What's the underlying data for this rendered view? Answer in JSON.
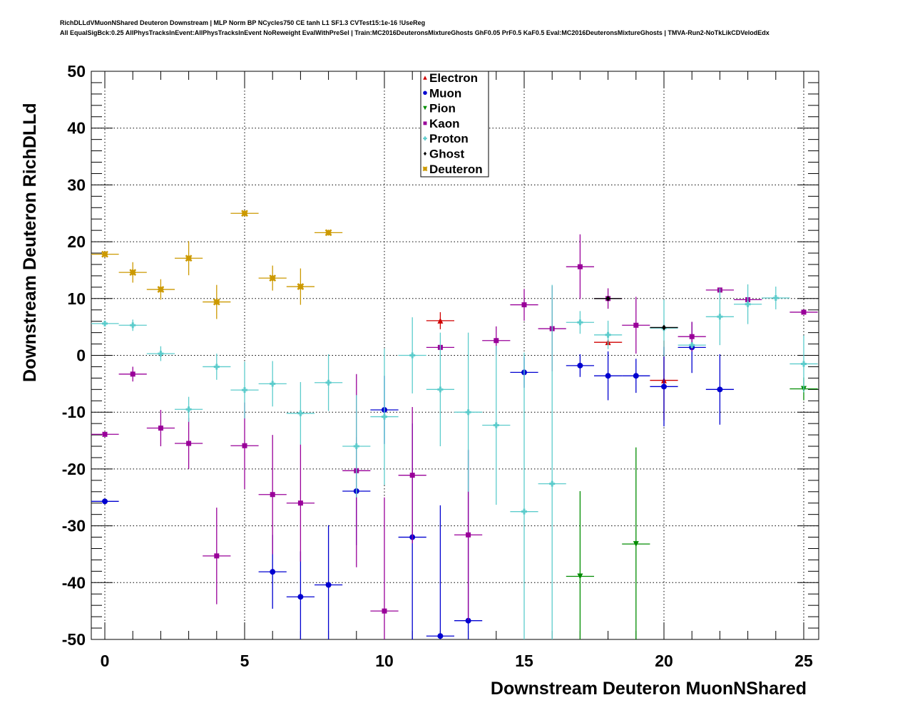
{
  "chart_data": {
    "type": "scatter",
    "title": "RichDLLdVMuonNShared Deuteron Downstream | MLP Norm BP NCycles750 CE tanh L1 SF1.3 CVTest15:1e-16 !UseReg",
    "subtitle": "All EqualSigBck:0.25 AllPhysTracksInEvent:AllPhysTracksInEvent NoReweight EvalWithPreSel | Train:MC2016DeuteronsMixtureGhosts GhF0.05 PrF0.5 KaF0.5 Eval:MC2016DeuteronsMixtureGhosts | TMVA-Run2-NoTkLikCDVelodEdx",
    "xlabel": "Downstream Deuteron MuonNShared",
    "ylabel": "Downstream Deuteron RichDLLd",
    "xlim": [
      -0.5,
      25.5
    ],
    "ylim": [
      -50,
      50
    ],
    "xticks": [
      0,
      5,
      10,
      15,
      20,
      25
    ],
    "yticks": [
      -50,
      -40,
      -30,
      -20,
      -10,
      0,
      10,
      20,
      30,
      40,
      50
    ],
    "grid": true,
    "legend_position": "top-center",
    "series": [
      {
        "name": "Electron",
        "color": "#d00000",
        "marker": "triangle-up",
        "points": [
          [
            12,
            6.1,
            1.5
          ],
          [
            18,
            2.3,
            0.5
          ],
          [
            20,
            -4.4,
            7
          ]
        ]
      },
      {
        "name": "Muon",
        "color": "#0000d0",
        "marker": "circle",
        "points": [
          [
            0,
            -25.7,
            0.3
          ],
          [
            6,
            -38.1,
            6.5
          ],
          [
            7,
            -42.5,
            8
          ],
          [
            8,
            -40.4,
            10.5
          ],
          [
            9,
            -23.9,
            9.5
          ],
          [
            10,
            -9.6,
            6
          ],
          [
            11,
            -32,
            20
          ],
          [
            12,
            -49.4,
            23
          ],
          [
            13,
            -46.7,
            30
          ],
          [
            15,
            -3,
            2.7
          ],
          [
            17,
            -1.8,
            2
          ],
          [
            18,
            -3.6,
            4.3
          ],
          [
            19,
            -3.6,
            3
          ],
          [
            20,
            -5.5,
            7
          ],
          [
            21,
            1.4,
            4.5
          ],
          [
            22,
            -6,
            6.2
          ]
        ]
      },
      {
        "name": "Pion",
        "color": "#008c00",
        "marker": "triangle-down",
        "points": [
          [
            17,
            -38.9,
            15
          ],
          [
            19,
            -33.2,
            17
          ],
          [
            25,
            -5.9,
            2
          ]
        ]
      },
      {
        "name": "Kaon",
        "color": "#990099",
        "marker": "square",
        "points": [
          [
            0,
            -13.9,
            0.3
          ],
          [
            1,
            -3.3,
            1.3
          ],
          [
            2,
            -12.8,
            3.2
          ],
          [
            3,
            -15.5,
            4.5
          ],
          [
            4,
            -35.3,
            8.5
          ],
          [
            5,
            -15.9,
            7.6
          ],
          [
            6,
            -24.5,
            10.5
          ],
          [
            7,
            -26,
            10.3
          ],
          [
            9,
            -20.3,
            17
          ],
          [
            10,
            -45,
            20
          ],
          [
            11,
            -21.1,
            12
          ],
          [
            12,
            1.4,
            0.5
          ],
          [
            13,
            -31.6,
            15
          ],
          [
            14,
            2.6,
            2.5
          ],
          [
            15,
            8.9,
            2.8
          ],
          [
            16,
            4.7,
            7.5
          ],
          [
            17,
            15.6,
            5.7
          ],
          [
            18,
            10,
            1.8
          ],
          [
            19,
            5.3,
            5
          ],
          [
            21,
            3.3,
            2.6
          ],
          [
            22,
            11.5,
            0.3
          ],
          [
            23,
            9.8,
            0.3
          ],
          [
            25,
            7.6,
            0.3
          ]
        ]
      },
      {
        "name": "Proton",
        "color": "#5ccccc",
        "marker": "cross",
        "points": [
          [
            0,
            5.6,
            0.5
          ],
          [
            1,
            5.3,
            1
          ],
          [
            2,
            0.3,
            1.3
          ],
          [
            3,
            -9.5,
            2.2
          ],
          [
            4,
            -2,
            2.3
          ],
          [
            5,
            -6.1,
            5
          ],
          [
            6,
            -5,
            4
          ],
          [
            7,
            -10.2,
            5.5
          ],
          [
            8,
            -4.8,
            5
          ],
          [
            9,
            -16,
            9
          ],
          [
            10,
            -10.8,
            12
          ],
          [
            11,
            0,
            6.7
          ],
          [
            12,
            -6,
            10
          ],
          [
            13,
            -10,
            14
          ],
          [
            14,
            -12.3,
            14
          ],
          [
            15,
            -27.5,
            28
          ],
          [
            16,
            -22.6,
            35
          ],
          [
            17,
            5.8,
            2
          ],
          [
            18,
            3.6,
            2.5
          ],
          [
            20,
            4.8,
            5
          ],
          [
            21,
            1.8,
            0.3
          ],
          [
            22,
            6.8,
            5
          ],
          [
            23,
            9,
            3.5
          ],
          [
            24,
            10.1,
            2
          ],
          [
            25,
            -1.5,
            5
          ]
        ]
      },
      {
        "name": "Ghost",
        "color": "#000000",
        "marker": "diamond",
        "points": [
          [
            18,
            10,
            0.3
          ],
          [
            20,
            4.9,
            0.3
          ]
        ]
      },
      {
        "name": "Deuteron",
        "color": "#cc9900",
        "marker": "star",
        "points": [
          [
            0,
            17.8,
            0.5
          ],
          [
            1,
            14.6,
            1.8
          ],
          [
            2,
            11.6,
            1.8
          ],
          [
            3,
            17.1,
            3
          ],
          [
            4,
            9.4,
            3
          ],
          [
            5,
            25,
            0.3
          ],
          [
            6,
            13.6,
            2.2
          ],
          [
            7,
            12.1,
            3.2
          ],
          [
            8,
            21.6,
            0.3
          ]
        ]
      }
    ]
  }
}
